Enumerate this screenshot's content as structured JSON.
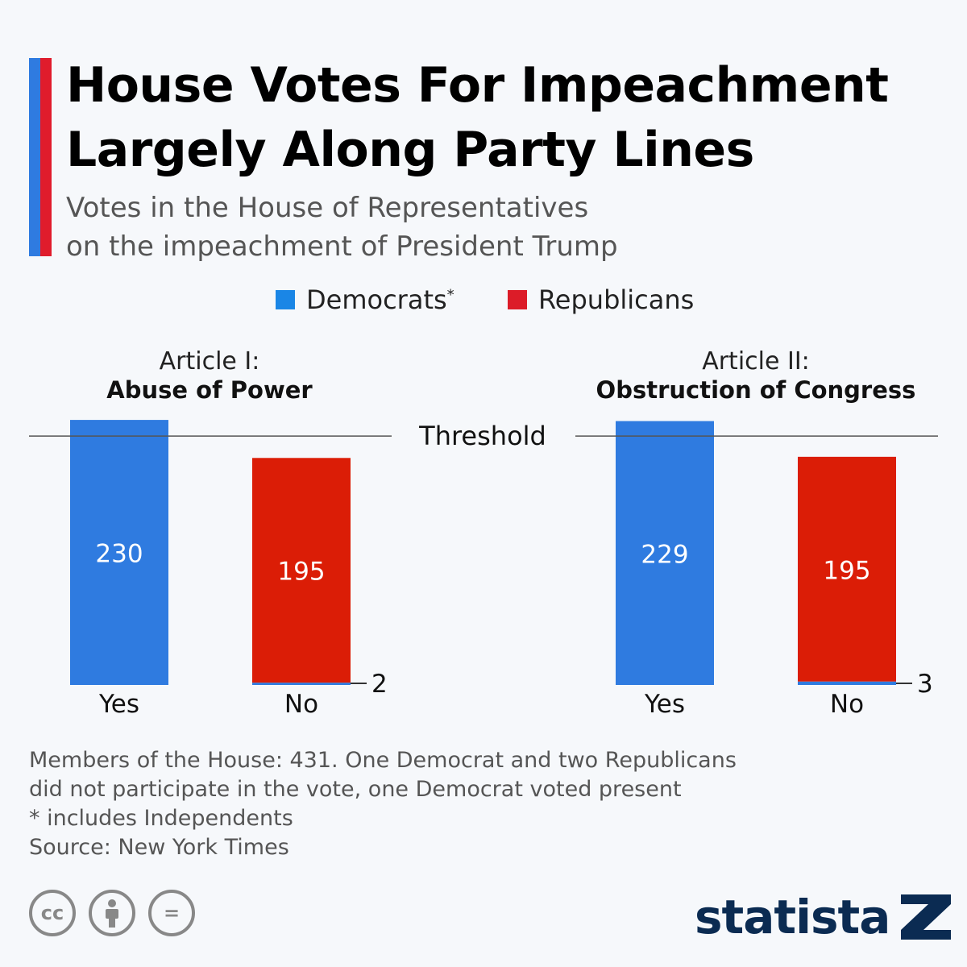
{
  "header": {
    "title_line1": "House Votes For Impeachment",
    "title_line2": "Largely Along Party Lines",
    "subtitle_line1": "Votes in the House of Representatives",
    "subtitle_line2": "on the impeachment of President Trump"
  },
  "legend": {
    "democrats_label": "Democrats",
    "democrats_mark": "*",
    "republicans_label": "Republicans"
  },
  "colors": {
    "democrats": "#2f7be0",
    "republicans": "#db1d06",
    "accent_blue": "#2f7be0",
    "accent_red": "#e01c2c"
  },
  "threshold_label": "Threshold",
  "chart_data": [
    {
      "type": "bar",
      "stacked": true,
      "title_line1": "Article I:",
      "title_line2": "Abuse of Power",
      "categories": [
        "Yes",
        "No"
      ],
      "series": [
        {
          "name": "Democrats",
          "values": [
            230,
            2
          ]
        },
        {
          "name": "Republicans",
          "values": [
            0,
            195
          ]
        }
      ],
      "labels": [
        "230",
        "195",
        "2"
      ],
      "threshold": 216
    },
    {
      "type": "bar",
      "stacked": true,
      "title_line1": "Article II:",
      "title_line2": "Obstruction of Congress",
      "categories": [
        "Yes",
        "No"
      ],
      "series": [
        {
          "name": "Democrats",
          "values": [
            229,
            3
          ]
        },
        {
          "name": "Republicans",
          "values": [
            0,
            195
          ]
        }
      ],
      "labels": [
        "229",
        "195",
        "3"
      ],
      "threshold": 216
    }
  ],
  "footer": {
    "note_line1": "Members of the House: 431. One Democrat and two Republicans",
    "note_line2": "did not participate in the vote, one Democrat voted present",
    "note_line3": "* includes Independents",
    "source": "Source: New York Times"
  },
  "icons": [
    "cc-icon",
    "by-icon",
    "nd-icon",
    "statista-logo-icon"
  ],
  "cc": {
    "cc_text": "cc",
    "nd_text": "="
  },
  "brand": {
    "name": "statista"
  }
}
